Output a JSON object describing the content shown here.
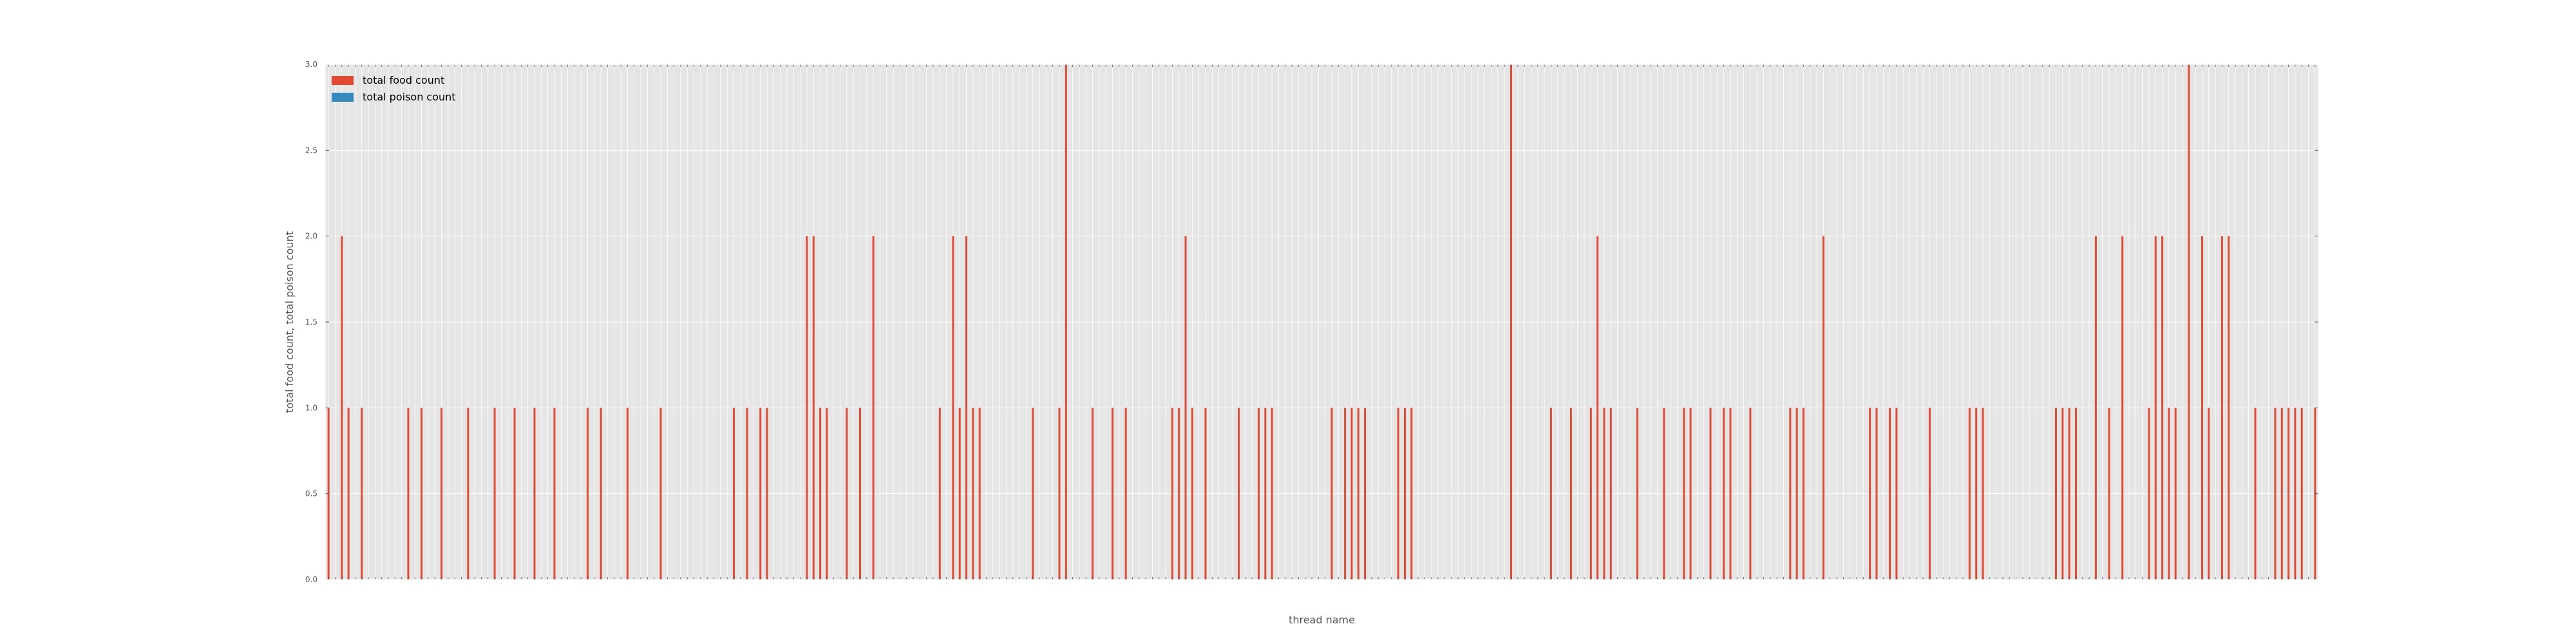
{
  "chart_data": {
    "type": "bar",
    "style": "ggplot",
    "xlabel": "thread name",
    "ylabel": "total food count, total poison count",
    "ylim": [
      0,
      3
    ],
    "y_ticks": [
      "0.0",
      "0.5",
      "1.0",
      "1.5",
      "2.0",
      "2.5",
      "3.0"
    ],
    "grid": true,
    "legend_position": "upper-left",
    "category_count": 300,
    "x_tick_labels": "thread ids (too small to read)",
    "series": [
      {
        "name": "total food count",
        "color": "#E24A33",
        "values": {
          "0": 1,
          "2": 2,
          "3": 1,
          "5": 1,
          "12": 1,
          "14": 1,
          "17": 1,
          "21": 1,
          "25": 1,
          "28": 1,
          "31": 1,
          "34": 1,
          "39": 1,
          "41": 1,
          "45": 1,
          "50": 1,
          "61": 1,
          "63": 1,
          "65": 1,
          "66": 1,
          "72": 2,
          "73": 2,
          "74": 1,
          "75": 1,
          "78": 1,
          "80": 1,
          "82": 2,
          "92": 1,
          "94": 2,
          "95": 1,
          "96": 2,
          "97": 1,
          "98": 1,
          "106": 1,
          "110": 1,
          "111": 3,
          "115": 1,
          "118": 1,
          "120": 1,
          "127": 1,
          "128": 1,
          "129": 2,
          "130": 1,
          "132": 1,
          "137": 1,
          "140": 1,
          "141": 1,
          "142": 1,
          "151": 1,
          "153": 1,
          "154": 1,
          "155": 1,
          "156": 1,
          "161": 1,
          "162": 1,
          "163": 1,
          "178": 3,
          "184": 1,
          "187": 1,
          "190": 1,
          "191": 2,
          "192": 1,
          "193": 1,
          "197": 1,
          "201": 1,
          "204": 1,
          "205": 1,
          "208": 1,
          "210": 1,
          "211": 1,
          "214": 1,
          "220": 1,
          "221": 1,
          "222": 1,
          "225": 2,
          "232": 1,
          "233": 1,
          "235": 1,
          "236": 1,
          "241": 1,
          "247": 1,
          "248": 1,
          "249": 1,
          "260": 1,
          "261": 1,
          "262": 1,
          "263": 1,
          "266": 2,
          "268": 1,
          "270": 2,
          "274": 1,
          "275": 2,
          "276": 2,
          "277": 1,
          "278": 1,
          "280": 3,
          "282": 2,
          "283": 1,
          "285": 2,
          "286": 2,
          "290": 1,
          "293": 1,
          "294": 1,
          "295": 1,
          "296": 1,
          "297": 1,
          "299": 1
        }
      },
      {
        "name": "total poison count",
        "color": "#348ABD",
        "values": {}
      }
    ]
  }
}
